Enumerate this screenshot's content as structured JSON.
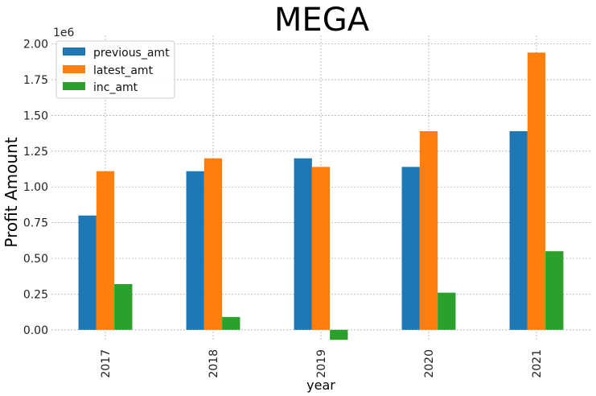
{
  "chart_data": {
    "type": "bar",
    "title": "MEGA",
    "xlabel": "year",
    "ylabel": "Profit Amount",
    "offset_text": "1e6",
    "categories": [
      "2017",
      "2018",
      "2019",
      "2020",
      "2021"
    ],
    "series": [
      {
        "name": "previous_amt",
        "color": "#1f77b4",
        "values": [
          0.8,
          1.11,
          1.2,
          1.14,
          1.39
        ]
      },
      {
        "name": "latest_amt",
        "color": "#ff7f0e",
        "values": [
          1.11,
          1.2,
          1.14,
          1.39,
          1.94
        ]
      },
      {
        "name": "inc_amt",
        "color": "#2ca02c",
        "values": [
          0.32,
          0.09,
          -0.07,
          0.26,
          0.55
        ]
      }
    ],
    "yticks": [
      "0.00",
      "0.25",
      "0.50",
      "0.75",
      "1.00",
      "1.25",
      "1.50",
      "1.75",
      "2.00"
    ],
    "ylim": [
      -0.08,
      2.06
    ],
    "grid": true,
    "legend_position": "top-left"
  }
}
